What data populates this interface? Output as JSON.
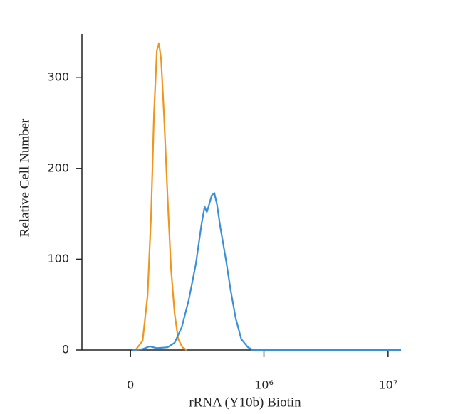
{
  "chart_data": {
    "type": "line",
    "y_label": "Relative Cell Number",
    "x_label": "rRNA (Y10b) Biotin",
    "xscale": "biexponential",
    "xlim": [
      -175000,
      12700000
    ],
    "xticks": [
      {
        "value": 0,
        "label": "0"
      },
      {
        "value": 1000000,
        "label": "10⁶"
      },
      {
        "value": 10000000,
        "label": "10⁷"
      }
    ],
    "ylim": [
      0,
      348
    ],
    "yticks": [
      0,
      100,
      200,
      300
    ],
    "series": [
      {
        "color": "#f0961e",
        "x": [
          15800,
          38600,
          54900,
          66800,
          76600,
          86600,
          94200,
          102000,
          112700,
          126400,
          140600,
          155600,
          171100,
          190600,
          211100
        ],
        "values": [
          0,
          10,
          60,
          150,
          260,
          330,
          338,
          320,
          260,
          170,
          90,
          40,
          12,
          3,
          0
        ]
      },
      {
        "color": "#3a8fd8",
        "x": [
          4500,
          38600,
          62000,
          86600,
          126400,
          155600,
          187300,
          221900,
          260900,
          296000,
          315000,
          329800,
          345300,
          364100,
          384500,
          406000,
          434400,
          484200,
          532700,
          585300,
          651600,
          740000,
          814100,
          12700000
        ],
        "values": [
          0,
          1,
          4,
          2,
          3,
          8,
          25,
          55,
          95,
          140,
          158,
          152,
          160,
          170,
          173,
          160,
          135,
          100,
          65,
          35,
          12,
          3,
          0,
          0
        ]
      }
    ]
  }
}
